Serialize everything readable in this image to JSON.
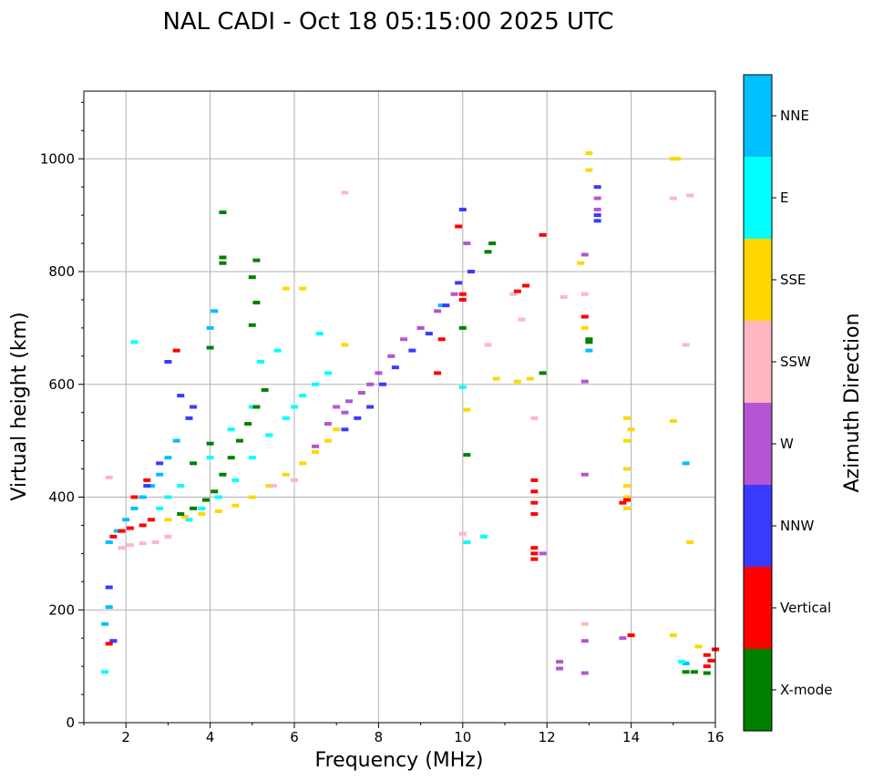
{
  "chart_data": {
    "type": "scatter",
    "title": "NAL CADI - Oct 18 05:15:00 2025 UTC",
    "xlabel": "Frequency (MHz)",
    "ylabel": "Virtual height (km)",
    "xlim": [
      1,
      16
    ],
    "ylim": [
      0,
      1120
    ],
    "xticks": [
      2,
      4,
      6,
      8,
      10,
      12,
      14,
      16
    ],
    "yticks": [
      0,
      200,
      400,
      600,
      800,
      1000
    ],
    "grid": true,
    "colorbar": {
      "label": "Azimuth Direction",
      "categories": [
        {
          "name": "NNE",
          "color": "#00bfff"
        },
        {
          "name": "E",
          "color": "#00ffff"
        },
        {
          "name": "SSE",
          "color": "#ffd700"
        },
        {
          "name": "SSW",
          "color": "#ffb6c1"
        },
        {
          "name": "W",
          "color": "#b455d4"
        },
        {
          "name": "NNW",
          "color": "#3a3aff"
        },
        {
          "name": "Vertical",
          "color": "#ff0000"
        },
        {
          "name": "X-mode",
          "color": "#008000"
        }
      ]
    },
    "series": [
      {
        "name": "NNE",
        "points": [
          [
            1.6,
            320
          ],
          [
            1.8,
            340
          ],
          [
            2.0,
            360
          ],
          [
            2.2,
            380
          ],
          [
            2.4,
            400
          ],
          [
            2.6,
            420
          ],
          [
            2.8,
            440
          ],
          [
            3.0,
            470
          ],
          [
            3.2,
            500
          ],
          [
            1.6,
            205
          ],
          [
            1.7,
            145
          ],
          [
            4.0,
            700
          ],
          [
            4.1,
            730
          ],
          [
            9.0,
            700
          ],
          [
            9.5,
            740
          ],
          [
            13.0,
            660
          ],
          [
            15.3,
            105
          ],
          [
            15.3,
            460
          ],
          [
            1.5,
            175
          ]
        ]
      },
      {
        "name": "E",
        "points": [
          [
            3.5,
            360
          ],
          [
            3.8,
            380
          ],
          [
            4.2,
            400
          ],
          [
            4.6,
            430
          ],
          [
            5.0,
            470
          ],
          [
            5.4,
            510
          ],
          [
            5.8,
            540
          ],
          [
            6.0,
            560
          ],
          [
            6.2,
            580
          ],
          [
            6.5,
            600
          ],
          [
            6.8,
            620
          ],
          [
            5.2,
            640
          ],
          [
            5.6,
            660
          ],
          [
            6.6,
            690
          ],
          [
            2.8,
            380
          ],
          [
            3.0,
            400
          ],
          [
            3.3,
            420
          ],
          [
            4.0,
            470
          ],
          [
            4.5,
            520
          ],
          [
            5.0,
            560
          ],
          [
            1.5,
            90
          ],
          [
            10.1,
            320
          ],
          [
            10.5,
            330
          ],
          [
            10.0,
            595
          ],
          [
            15.2,
            108
          ],
          [
            2.2,
            675
          ]
        ]
      },
      {
        "name": "SSE",
        "points": [
          [
            3.0,
            360
          ],
          [
            3.4,
            365
          ],
          [
            3.8,
            370
          ],
          [
            4.2,
            375
          ],
          [
            4.6,
            385
          ],
          [
            5.0,
            400
          ],
          [
            5.4,
            420
          ],
          [
            5.8,
            440
          ],
          [
            6.2,
            460
          ],
          [
            6.5,
            480
          ],
          [
            6.8,
            500
          ],
          [
            7.0,
            520
          ],
          [
            5.8,
            770
          ],
          [
            6.2,
            770
          ],
          [
            7.2,
            670
          ],
          [
            10.1,
            555
          ],
          [
            10.8,
            610
          ],
          [
            11.3,
            605
          ],
          [
            11.6,
            610
          ],
          [
            13.0,
            980
          ],
          [
            13.0,
            1010
          ],
          [
            12.8,
            815
          ],
          [
            12.9,
            700
          ],
          [
            13.9,
            380
          ],
          [
            13.9,
            400
          ],
          [
            13.9,
            420
          ],
          [
            13.9,
            450
          ],
          [
            13.9,
            500
          ],
          [
            13.9,
            540
          ],
          [
            14.0,
            520
          ],
          [
            15.0,
            1000
          ],
          [
            15.1,
            1000
          ],
          [
            15.0,
            535
          ],
          [
            15.0,
            155
          ],
          [
            15.4,
            320
          ],
          [
            15.6,
            135
          ],
          [
            16.0,
            130
          ]
        ]
      },
      {
        "name": "SSW",
        "points": [
          [
            1.9,
            310
          ],
          [
            2.1,
            315
          ],
          [
            2.4,
            318
          ],
          [
            2.7,
            320
          ],
          [
            3.0,
            330
          ],
          [
            6.0,
            430
          ],
          [
            5.5,
            420
          ],
          [
            10.6,
            670
          ],
          [
            11.2,
            760
          ],
          [
            11.4,
            715
          ],
          [
            11.7,
            540
          ],
          [
            12.4,
            755
          ],
          [
            12.9,
            760
          ],
          [
            15.0,
            930
          ],
          [
            15.4,
            935
          ],
          [
            15.3,
            670
          ],
          [
            12.9,
            175
          ],
          [
            10.0,
            335
          ],
          [
            7.2,
            940
          ],
          [
            1.6,
            435
          ]
        ]
      },
      {
        "name": "W",
        "points": [
          [
            7.0,
            560
          ],
          [
            7.3,
            570
          ],
          [
            7.6,
            585
          ],
          [
            7.8,
            600
          ],
          [
            8.0,
            620
          ],
          [
            8.3,
            650
          ],
          [
            8.6,
            680
          ],
          [
            9.0,
            700
          ],
          [
            9.4,
            730
          ],
          [
            9.8,
            760
          ],
          [
            10.1,
            850
          ],
          [
            11.9,
            300
          ],
          [
            12.3,
            108
          ],
          [
            12.3,
            96
          ],
          [
            12.9,
            145
          ],
          [
            12.9,
            88
          ],
          [
            12.9,
            440
          ],
          [
            12.9,
            605
          ],
          [
            13.2,
            910
          ],
          [
            13.2,
            930
          ],
          [
            12.9,
            830
          ],
          [
            13.8,
            150
          ],
          [
            6.5,
            490
          ],
          [
            6.8,
            530
          ],
          [
            7.2,
            550
          ]
        ]
      },
      {
        "name": "NNW",
        "points": [
          [
            7.2,
            520
          ],
          [
            7.5,
            540
          ],
          [
            7.8,
            560
          ],
          [
            8.1,
            600
          ],
          [
            8.4,
            630
          ],
          [
            8.8,
            660
          ],
          [
            9.2,
            690
          ],
          [
            9.6,
            740
          ],
          [
            9.9,
            780
          ],
          [
            10.2,
            800
          ],
          [
            10.0,
            910
          ],
          [
            3.0,
            640
          ],
          [
            3.3,
            580
          ],
          [
            3.6,
            560
          ],
          [
            2.5,
            420
          ],
          [
            2.8,
            460
          ],
          [
            3.5,
            540
          ],
          [
            1.7,
            145
          ],
          [
            13.2,
            890
          ],
          [
            13.2,
            900
          ],
          [
            13.2,
            950
          ],
          [
            1.6,
            240
          ]
        ]
      },
      {
        "name": "Vertical",
        "points": [
          [
            1.7,
            330
          ],
          [
            1.9,
            340
          ],
          [
            2.1,
            345
          ],
          [
            2.4,
            350
          ],
          [
            2.6,
            360
          ],
          [
            2.2,
            400
          ],
          [
            2.5,
            430
          ],
          [
            1.6,
            140
          ],
          [
            10.0,
            750
          ],
          [
            10.0,
            760
          ],
          [
            9.9,
            880
          ],
          [
            9.5,
            680
          ],
          [
            9.4,
            620
          ],
          [
            11.9,
            865
          ],
          [
            11.3,
            765
          ],
          [
            11.5,
            775
          ],
          [
            11.7,
            300
          ],
          [
            11.7,
            290
          ],
          [
            11.7,
            310
          ],
          [
            11.7,
            370
          ],
          [
            11.7,
            390
          ],
          [
            11.7,
            410
          ],
          [
            11.7,
            430
          ],
          [
            12.9,
            720
          ],
          [
            14.0,
            155
          ],
          [
            13.9,
            395
          ],
          [
            13.8,
            390
          ],
          [
            15.8,
            100
          ],
          [
            15.9,
            110
          ],
          [
            15.8,
            120
          ],
          [
            16.0,
            130
          ],
          [
            3.2,
            660
          ]
        ]
      },
      {
        "name": "X-mode",
        "points": [
          [
            3.3,
            370
          ],
          [
            3.6,
            380
          ],
          [
            3.9,
            395
          ],
          [
            4.1,
            410
          ],
          [
            4.3,
            440
          ],
          [
            4.5,
            470
          ],
          [
            4.7,
            500
          ],
          [
            4.9,
            530
          ],
          [
            5.1,
            560
          ],
          [
            5.3,
            590
          ],
          [
            4.3,
            905
          ],
          [
            4.3,
            815
          ],
          [
            4.3,
            825
          ],
          [
            5.1,
            820
          ],
          [
            5.0,
            790
          ],
          [
            5.1,
            745
          ],
          [
            5.0,
            705
          ],
          [
            4.0,
            665
          ],
          [
            10.7,
            850
          ],
          [
            10.6,
            835
          ],
          [
            10.1,
            475
          ],
          [
            10.0,
            700
          ],
          [
            11.9,
            620
          ],
          [
            13.0,
            680
          ],
          [
            13.0,
            675
          ],
          [
            15.3,
            90
          ],
          [
            15.5,
            90
          ],
          [
            15.8,
            88
          ],
          [
            4.0,
            495
          ],
          [
            3.6,
            460
          ]
        ]
      }
    ]
  }
}
